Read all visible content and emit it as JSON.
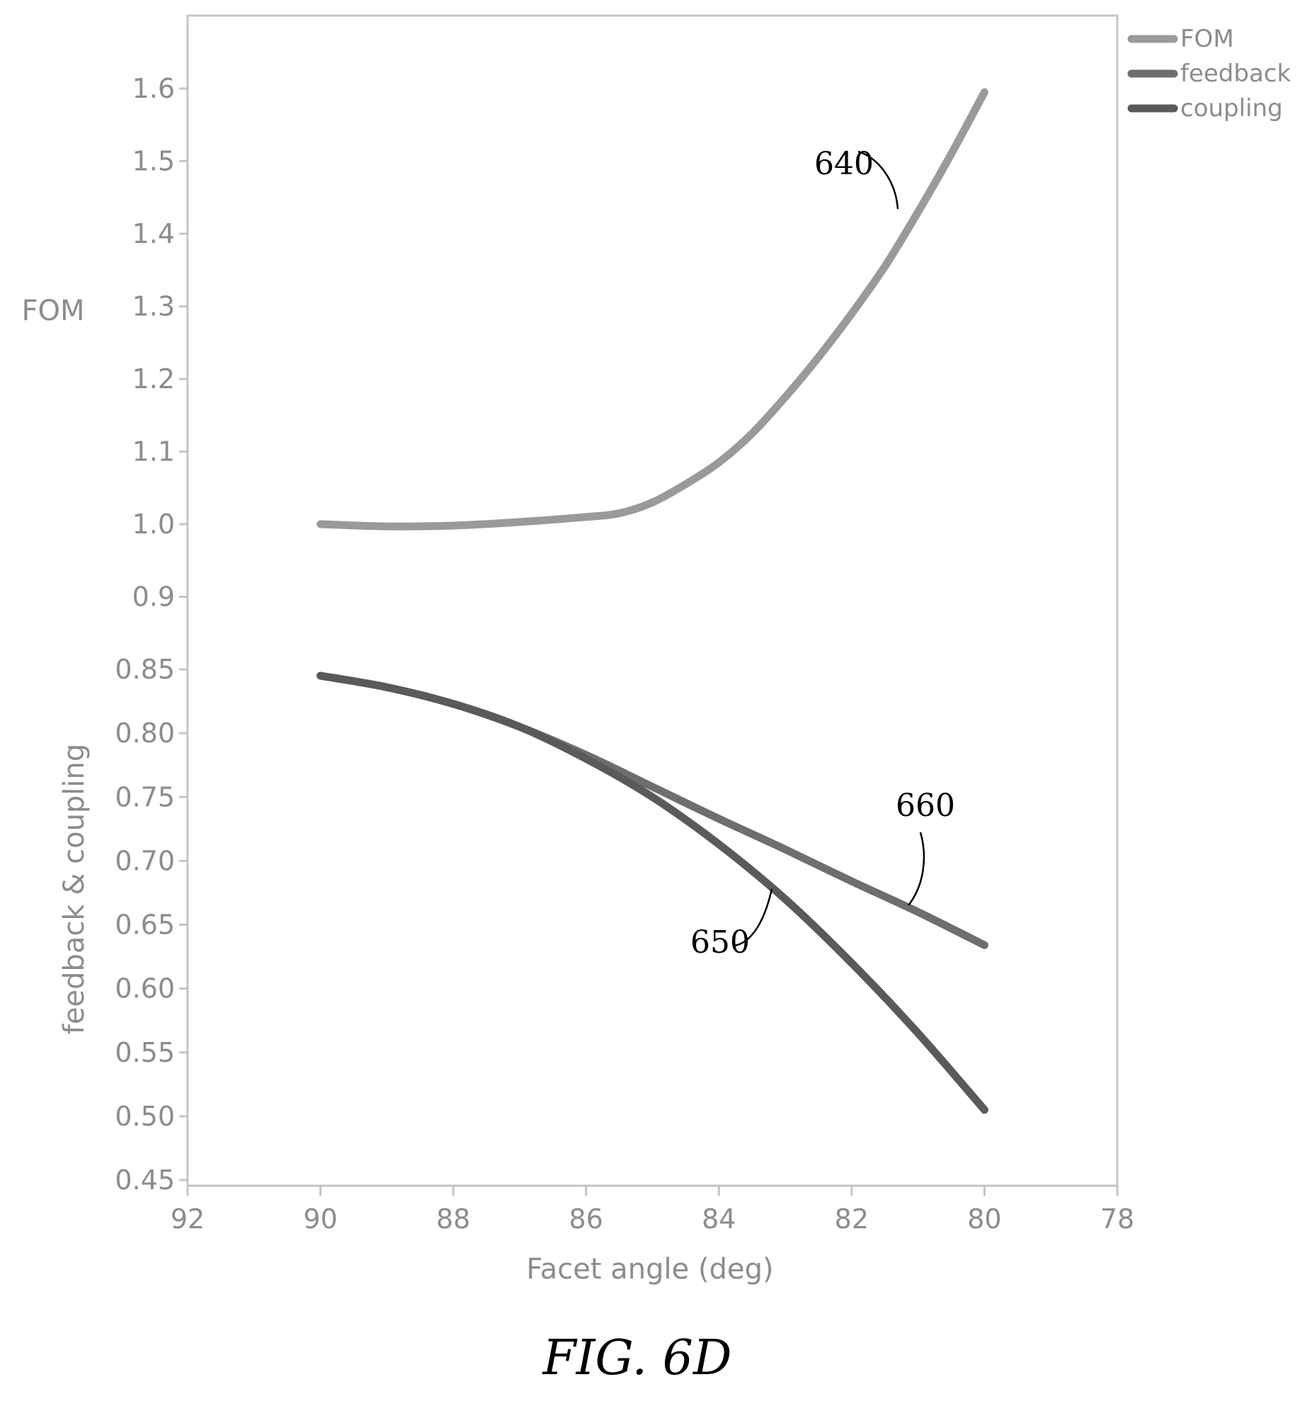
{
  "figure": {
    "caption": "FIG. 6D"
  },
  "colors": {
    "FOM": "#9a9a9a",
    "feedback": "#6e6e6e",
    "coupling": "#5a5a5a",
    "frame": "#c4c4c4",
    "text": "#8c8c8c"
  },
  "chart_data": {
    "type": "line",
    "title": "",
    "xlabel": "Facet angle (deg)",
    "xlim": [
      92,
      78
    ],
    "x_reversed": true,
    "x_ticks": [
      92,
      90,
      88,
      86,
      84,
      82,
      80,
      78
    ],
    "x_tick_labels": [
      "92",
      "90",
      "88",
      "86",
      "84",
      "82",
      "80",
      "78"
    ],
    "grid": false,
    "legend_position": "top-right, outside plot",
    "panels": [
      {
        "name": "upper",
        "ylabel": "FOM",
        "ylim": [
          0.95,
          1.68
        ],
        "y_ticks": [
          1.0,
          1.1,
          1.2,
          1.3,
          1.4,
          1.5,
          1.6
        ],
        "y_tick_labels": [
          "1.0",
          "1.1",
          "1.2",
          "1.3",
          "1.4",
          "1.5",
          "1.6"
        ]
      },
      {
        "name": "lower",
        "ylabel": "feedback & coupling",
        "ylim": [
          0.45,
          0.85
        ],
        "y_ticks": [
          0.45,
          0.5,
          0.55,
          0.6,
          0.65,
          0.7,
          0.75,
          0.8,
          0.85
        ],
        "y_tick_labels": [
          "0.45",
          "0.50",
          "0.55",
          "0.60",
          "0.65",
          "0.70",
          "0.75",
          "0.80",
          "0.85"
        ],
        "extra_tick": {
          "value": 0.9,
          "label": "0.9"
        }
      }
    ],
    "series": [
      {
        "name": "FOM",
        "panel": "upper",
        "x": [
          90,
          89,
          88,
          87,
          86,
          85.5,
          85,
          84.5,
          84,
          83.5,
          83,
          82.5,
          82,
          81.5,
          81,
          80.5,
          80
        ],
        "y": [
          1.0,
          0.997,
          0.998,
          1.003,
          1.01,
          1.015,
          1.03,
          1.055,
          1.085,
          1.125,
          1.175,
          1.23,
          1.29,
          1.355,
          1.43,
          1.51,
          1.595
        ]
      },
      {
        "name": "feedback",
        "panel": "lower",
        "x": [
          90,
          89,
          88,
          87,
          86,
          85,
          84,
          83,
          82,
          81,
          80
        ],
        "y": [
          0.845,
          0.836,
          0.823,
          0.805,
          0.783,
          0.758,
          0.733,
          0.709,
          0.684,
          0.66,
          0.634
        ]
      },
      {
        "name": "coupling",
        "panel": "lower",
        "x": [
          90,
          89,
          88,
          87,
          86,
          85,
          84,
          83,
          82,
          81,
          80
        ],
        "y": [
          0.845,
          0.836,
          0.823,
          0.805,
          0.78,
          0.75,
          0.713,
          0.67,
          0.62,
          0.565,
          0.505
        ]
      }
    ],
    "annotations": [
      {
        "text": "640",
        "target": "FOM"
      },
      {
        "text": "650",
        "target": "coupling"
      },
      {
        "text": "660",
        "target": "feedback"
      }
    ]
  }
}
